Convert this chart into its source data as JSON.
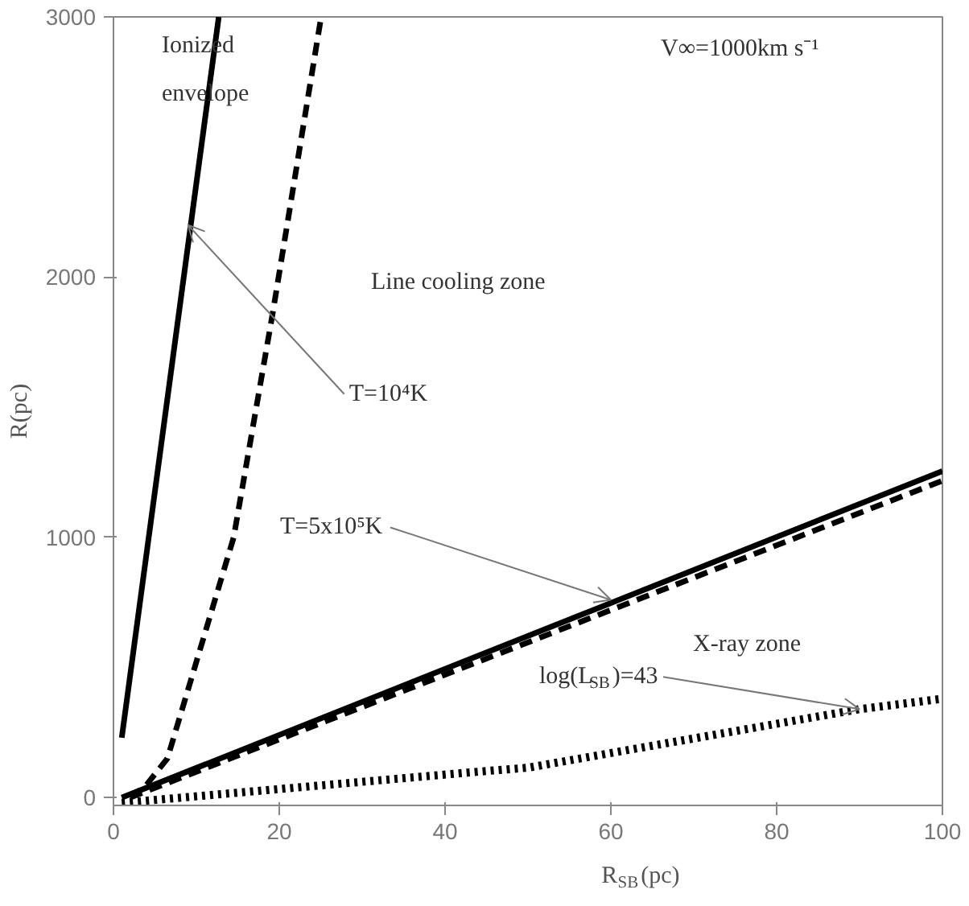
{
  "chart_data": {
    "type": "line",
    "xlabel": "R$_{SB}$(pc)",
    "ylabel": "R(pc)",
    "xlim": [
      0,
      100
    ],
    "ylim": [
      -30,
      3000
    ],
    "xticks": [
      0,
      20,
      40,
      60,
      80,
      100
    ],
    "yticks": [
      0,
      1000,
      2000,
      3000
    ],
    "grid": false,
    "series": [
      {
        "color": "#000000",
        "line_style": "solid",
        "x": [
          1,
          12.7
        ],
        "values": [
          230,
          3000
        ]
      },
      {
        "color": "#000000",
        "line_style": "dashed",
        "x": [
          2,
          4,
          6.5,
          10.5,
          14.5,
          19.2,
          25
        ],
        "values": [
          0,
          50,
          150,
          575,
          1000,
          1860,
          2990
        ]
      },
      {
        "color": "#000000",
        "line_style": "solid",
        "x": [
          1,
          100
        ],
        "values": [
          0,
          1255
        ]
      },
      {
        "color": "#000000",
        "line_style": "dashed",
        "x": [
          2,
          100
        ],
        "values": [
          0,
          1218
        ]
      },
      {
        "color": "#000000",
        "line_style": "dotted",
        "x": [
          1,
          43,
          50,
          90,
          100
        ],
        "values": [
          -20,
          97,
          115,
          340,
          380
        ]
      }
    ],
    "annotations": [
      "Ionized\nenvelope",
      "V∞=1000km s⁻¹",
      "Line cooling zone",
      {
        "text": "T=10⁴K",
        "x": 9,
        "y": 2200
      },
      {
        "text": "T=5x10⁵K",
        "x": 60,
        "y": 760
      },
      "X-ray zone",
      {
        "text": "log(L$_{SB}$)=43",
        "x": 90,
        "y": 340
      }
    ]
  }
}
